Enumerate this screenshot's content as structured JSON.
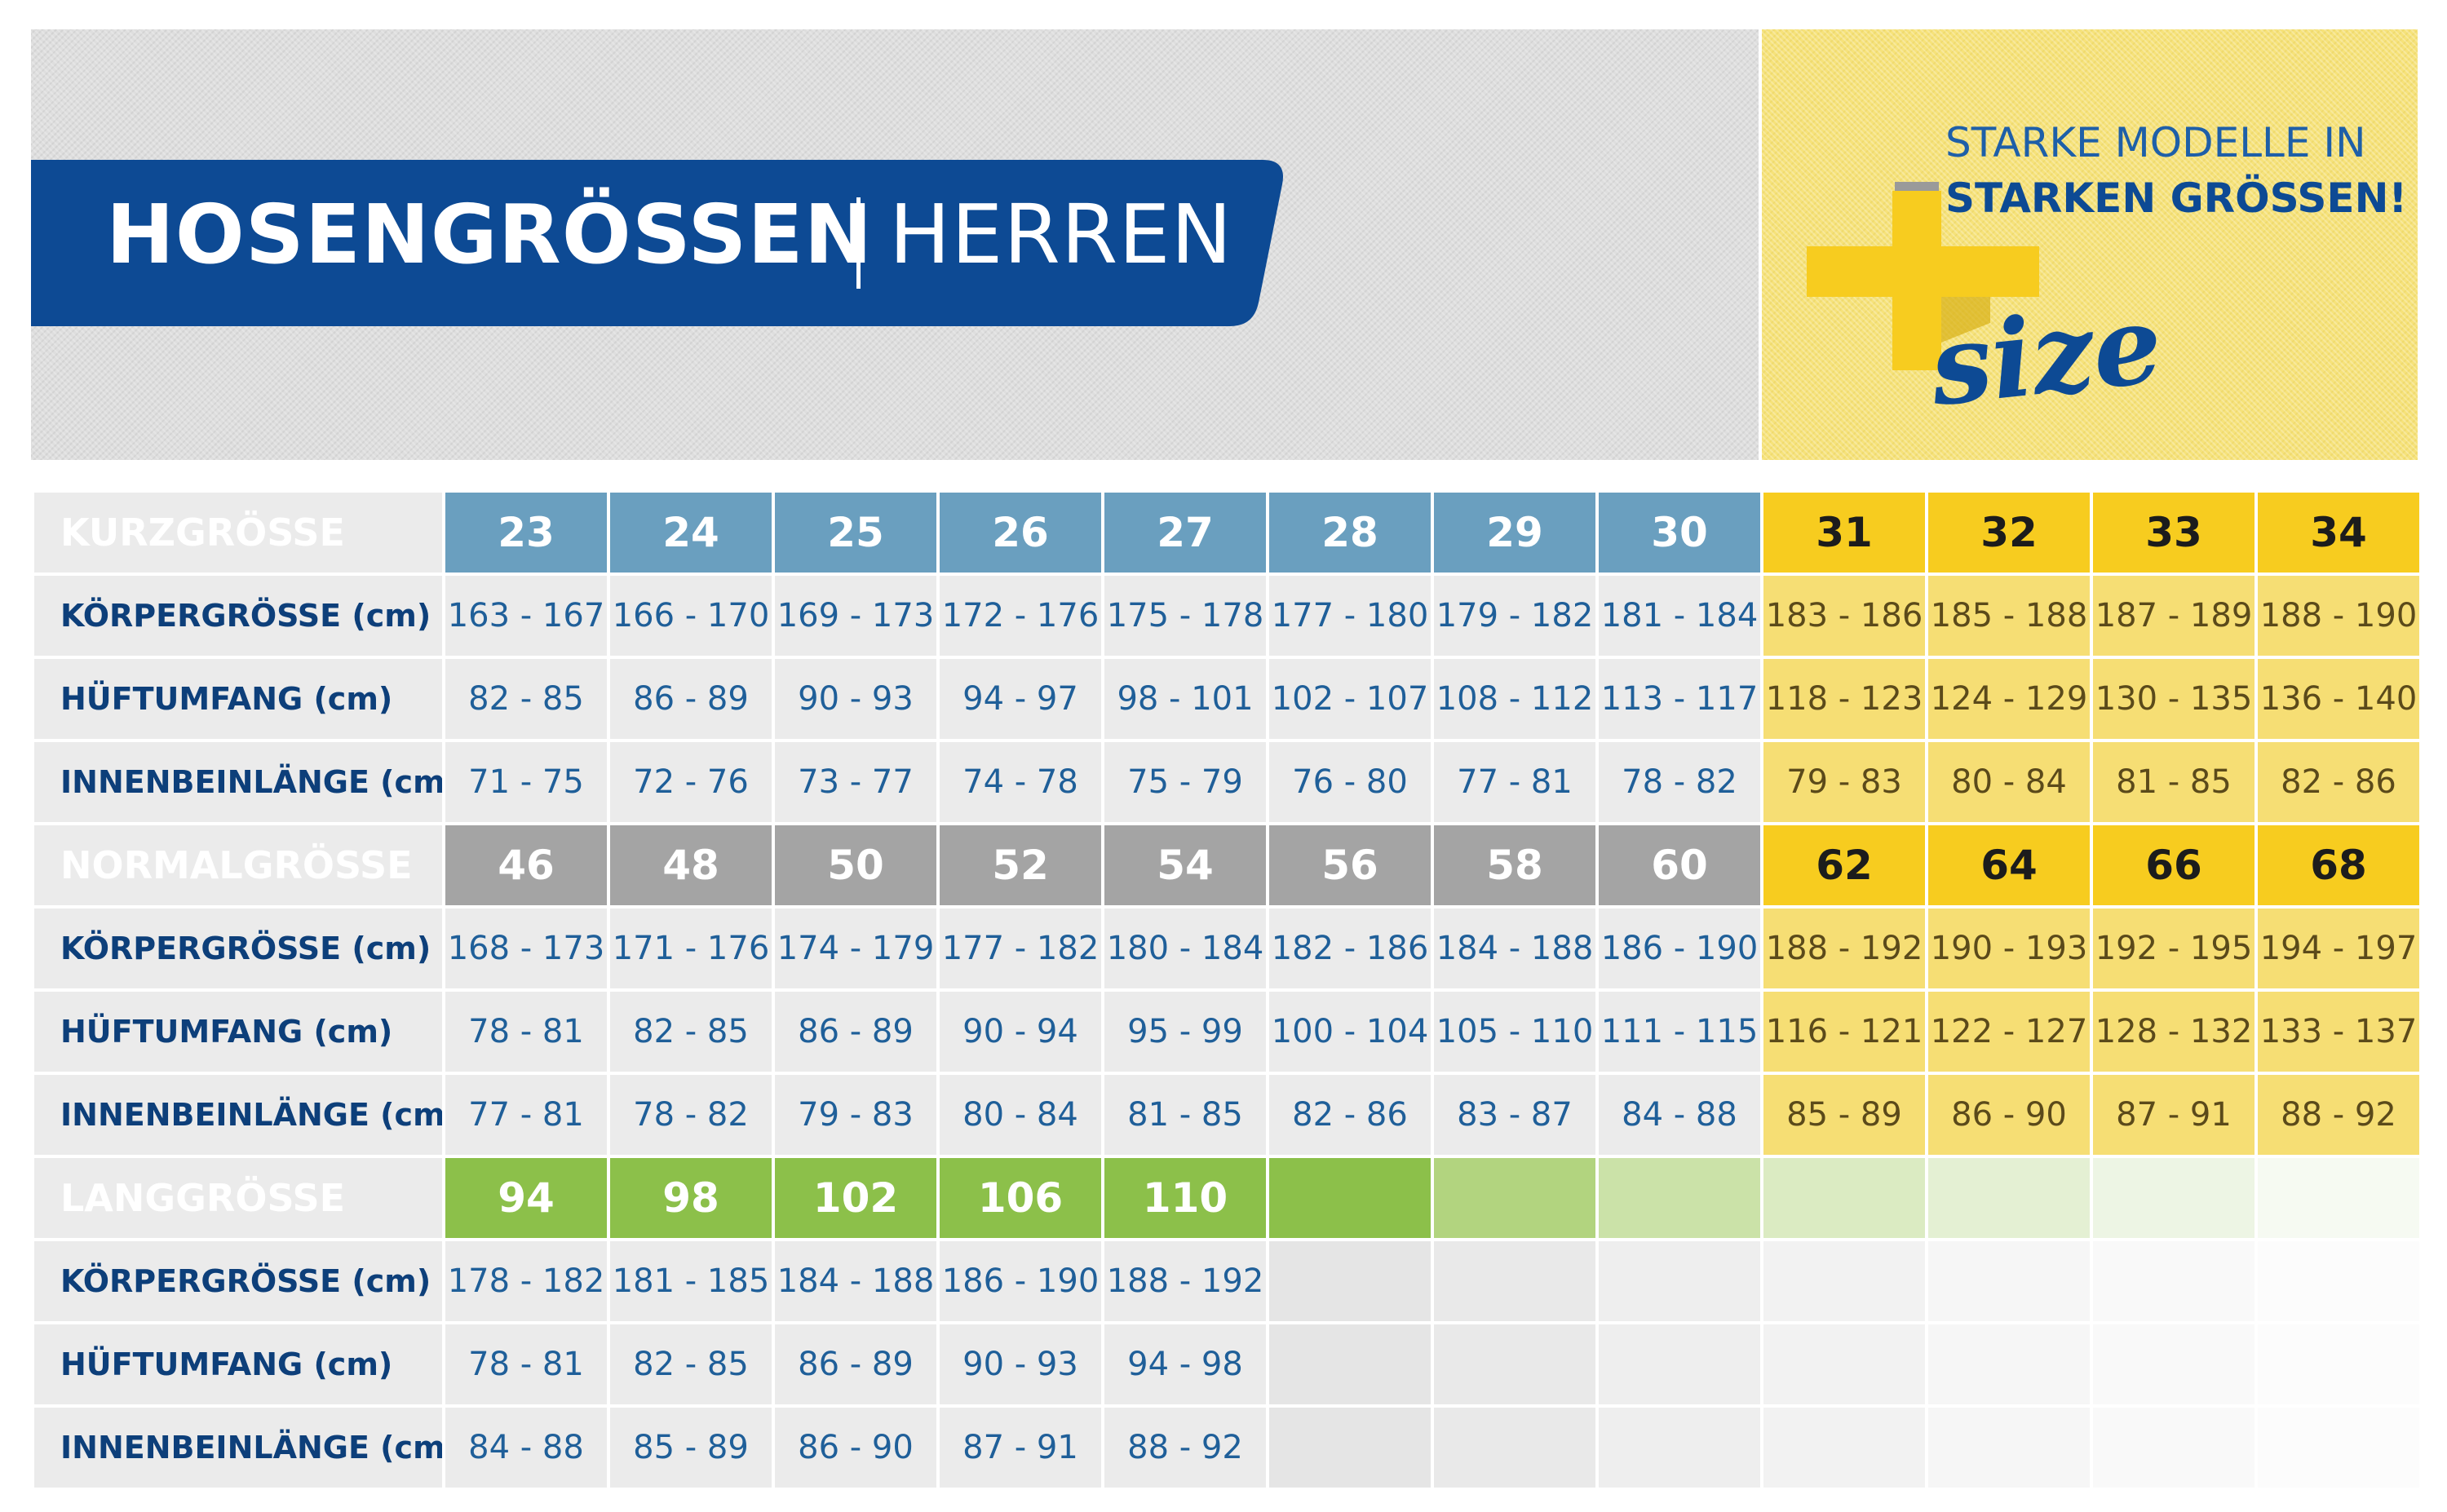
{
  "header": {
    "title_bold": "HOSENGRÖSSEN",
    "title_light": "HERREN",
    "promo_line1": "STARKE MODELLE IN",
    "promo_line2": "STARKEN GRÖSSEN!",
    "logo_text": "size",
    "colors": {
      "banner": "#0d4a94",
      "plus_yellow": "#f7cc1f",
      "blue_text": "#1e5fa8"
    }
  },
  "kurz": {
    "label": "KURZGRÖSSE",
    "sizes": [
      "23",
      "24",
      "25",
      "26",
      "27",
      "28",
      "29",
      "30",
      "31",
      "32",
      "33",
      "34"
    ],
    "rows": [
      {
        "label": "KÖRPERGRÖSSE (cm)",
        "values": [
          "163 - 167",
          "166 - 170",
          "169 - 173",
          "172 - 176",
          "175 - 178",
          "177 - 180",
          "179 - 182",
          "181 - 184",
          "183 - 186",
          "185 - 188",
          "187 - 189",
          "188 - 190"
        ]
      },
      {
        "label": "HÜFTUMFANG (cm)",
        "values": [
          "82 - 85",
          "86 - 89",
          "90 - 93",
          "94 - 97",
          "98 - 101",
          "102 - 107",
          "108 - 112",
          "113 - 117",
          "118 - 123",
          "124 - 129",
          "130 - 135",
          "136 - 140"
        ]
      },
      {
        "label": "INNENBEINLÄNGE (cm)",
        "values": [
          "71 - 75",
          "72 - 76",
          "73 - 77",
          "74 - 78",
          "75 - 79",
          "76 - 80",
          "77 - 81",
          "78 - 82",
          "79 - 83",
          "80 - 84",
          "81 - 85",
          "82 - 86"
        ]
      }
    ]
  },
  "normal": {
    "label": "NORMALGRÖSSE",
    "sizes": [
      "46",
      "48",
      "50",
      "52",
      "54",
      "56",
      "58",
      "60",
      "62",
      "64",
      "66",
      "68"
    ],
    "rows": [
      {
        "label": "KÖRPERGRÖSSE (cm)",
        "values": [
          "168 - 173",
          "171 - 176",
          "174 - 179",
          "177 - 182",
          "180 - 184",
          "182 - 186",
          "184 - 188",
          "186 - 190",
          "188 - 192",
          "190 - 193",
          "192 - 195",
          "194 - 197"
        ]
      },
      {
        "label": "HÜFTUMFANG (cm)",
        "values": [
          "78 - 81",
          "82 - 85",
          "86 - 89",
          "90 - 94",
          "95 - 99",
          "100 - 104",
          "105 - 110",
          "111 - 115",
          "116 - 121",
          "122 - 127",
          "128 - 132",
          "133 - 137"
        ]
      },
      {
        "label": "INNENBEINLÄNGE (cm)",
        "values": [
          "77 - 81",
          "78 - 82",
          "79 - 83",
          "80 - 84",
          "81 - 85",
          "82 - 86",
          "83 - 87",
          "84 - 88",
          "85 - 89",
          "86 - 90",
          "87 - 91",
          "88 - 92"
        ]
      }
    ]
  },
  "lang": {
    "label": "LANGGRÖSSE",
    "sizes": [
      "94",
      "98",
      "102",
      "106",
      "110"
    ],
    "rows": [
      {
        "label": "KÖRPERGRÖSSE (cm)",
        "values": [
          "178 - 182",
          "181 - 185",
          "184 - 188",
          "186 - 190",
          "188 - 192"
        ]
      },
      {
        "label": "HÜFTUMFANG (cm)",
        "values": [
          "78 - 81",
          "82 - 85",
          "86 - 89",
          "90 - 93",
          "94 - 98"
        ]
      },
      {
        "label": "INNENBEINLÄNGE (cm)",
        "values": [
          "84 - 88",
          "85 - 89",
          "86 - 90",
          "87 - 91",
          "88 - 92"
        ]
      }
    ]
  },
  "table_colors": {
    "kurz_header": "#6a9fbf",
    "normal_header": "#a4a4a4",
    "lang_header": "#8cc04a",
    "plus_header": "#f7cc1f",
    "plus_cell": "#f6de74",
    "cell": "#ebebeb"
  }
}
